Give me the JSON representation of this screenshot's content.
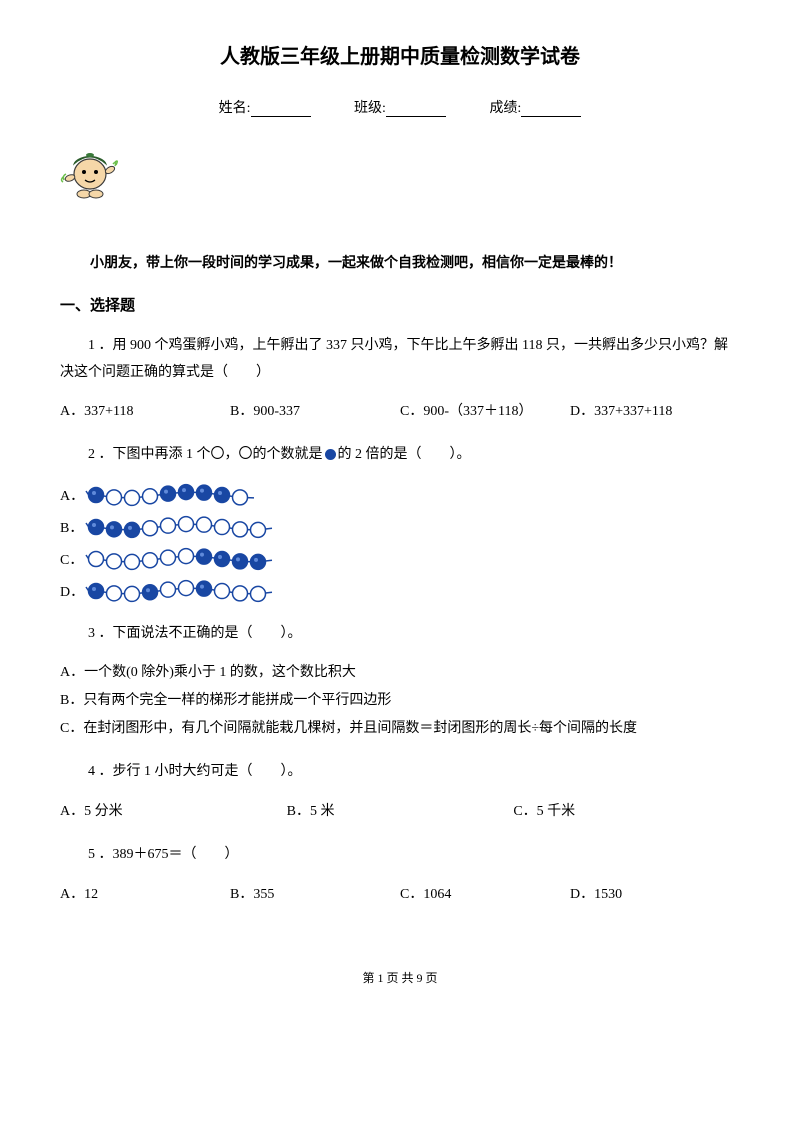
{
  "title": "人教版三年级上册期中质量检测数学试卷",
  "info": {
    "name_label": "姓名:",
    "class_label": "班级:",
    "score_label": "成绩:"
  },
  "intro": "小朋友，带上你一段时间的学习成果，一起来做个自我检测吧，相信你一定是最棒的！",
  "section1_header": "一、选择题",
  "q1": {
    "text": "1 ．用 900 个鸡蛋孵小鸡，上午孵出了 337 只小鸡，下午比上午多孵出 118 只，一共孵出多少只小鸡？解决这个问题正确的算式是（　　）",
    "optA": "A．337+118",
    "optB": "B．900-337",
    "optC": "C．900-（337＋118）",
    "optD": "D．337+337+118"
  },
  "q2": {
    "text_before": "2 ．下图中再添 1 个〇，〇的个数就是",
    "text_after": "的 2 倍的是（　　）。",
    "labelA": "A．",
    "labelB": "B．",
    "labelC": "C．",
    "labelD": "D．",
    "beads": {
      "A": [
        "b",
        "w",
        "w",
        "w",
        "b",
        "b",
        "b",
        "b",
        "w"
      ],
      "B": [
        "b",
        "b",
        "b",
        "w",
        "w",
        "w",
        "w",
        "w",
        "w",
        "w"
      ],
      "C": [
        "w",
        "w",
        "w",
        "w",
        "w",
        "w",
        "b",
        "b",
        "b",
        "b"
      ],
      "D": [
        "b",
        "w",
        "w",
        "b",
        "w",
        "w",
        "b",
        "w",
        "w",
        "w"
      ]
    },
    "colors": {
      "filled": "#1947a3",
      "empty": "#ffffff",
      "stroke": "#1947a3",
      "line": "#1947a3"
    }
  },
  "q3": {
    "text": "3 ．下面说法不正确的是（　　）。",
    "optA": "A．一个数(0 除外)乘小于 1 的数，这个数比积大",
    "optB": "B．只有两个完全一样的梯形才能拼成一个平行四边形",
    "optC": "C．在封闭图形中，有几个间隔就能栽几棵树，并且间隔数＝封闭图形的周长÷每个间隔的长度"
  },
  "q4": {
    "text": "4 ．步行 1 小时大约可走（　　）。",
    "optA": "A．5 分米",
    "optB": "B．5 米",
    "optC": "C．5 千米"
  },
  "q5": {
    "text": "5 ．389＋675＝（　　）",
    "optA": "A．12",
    "optB": "B．355",
    "optC": "C．1064",
    "optD": "D．1530"
  },
  "footer": "第 1 页 共 9 页",
  "mascot": {
    "cap_color": "#3a7a3a",
    "face_color": "#f5d7a8",
    "outline": "#3a3a3a",
    "leaf_color": "#6bbf4a"
  }
}
